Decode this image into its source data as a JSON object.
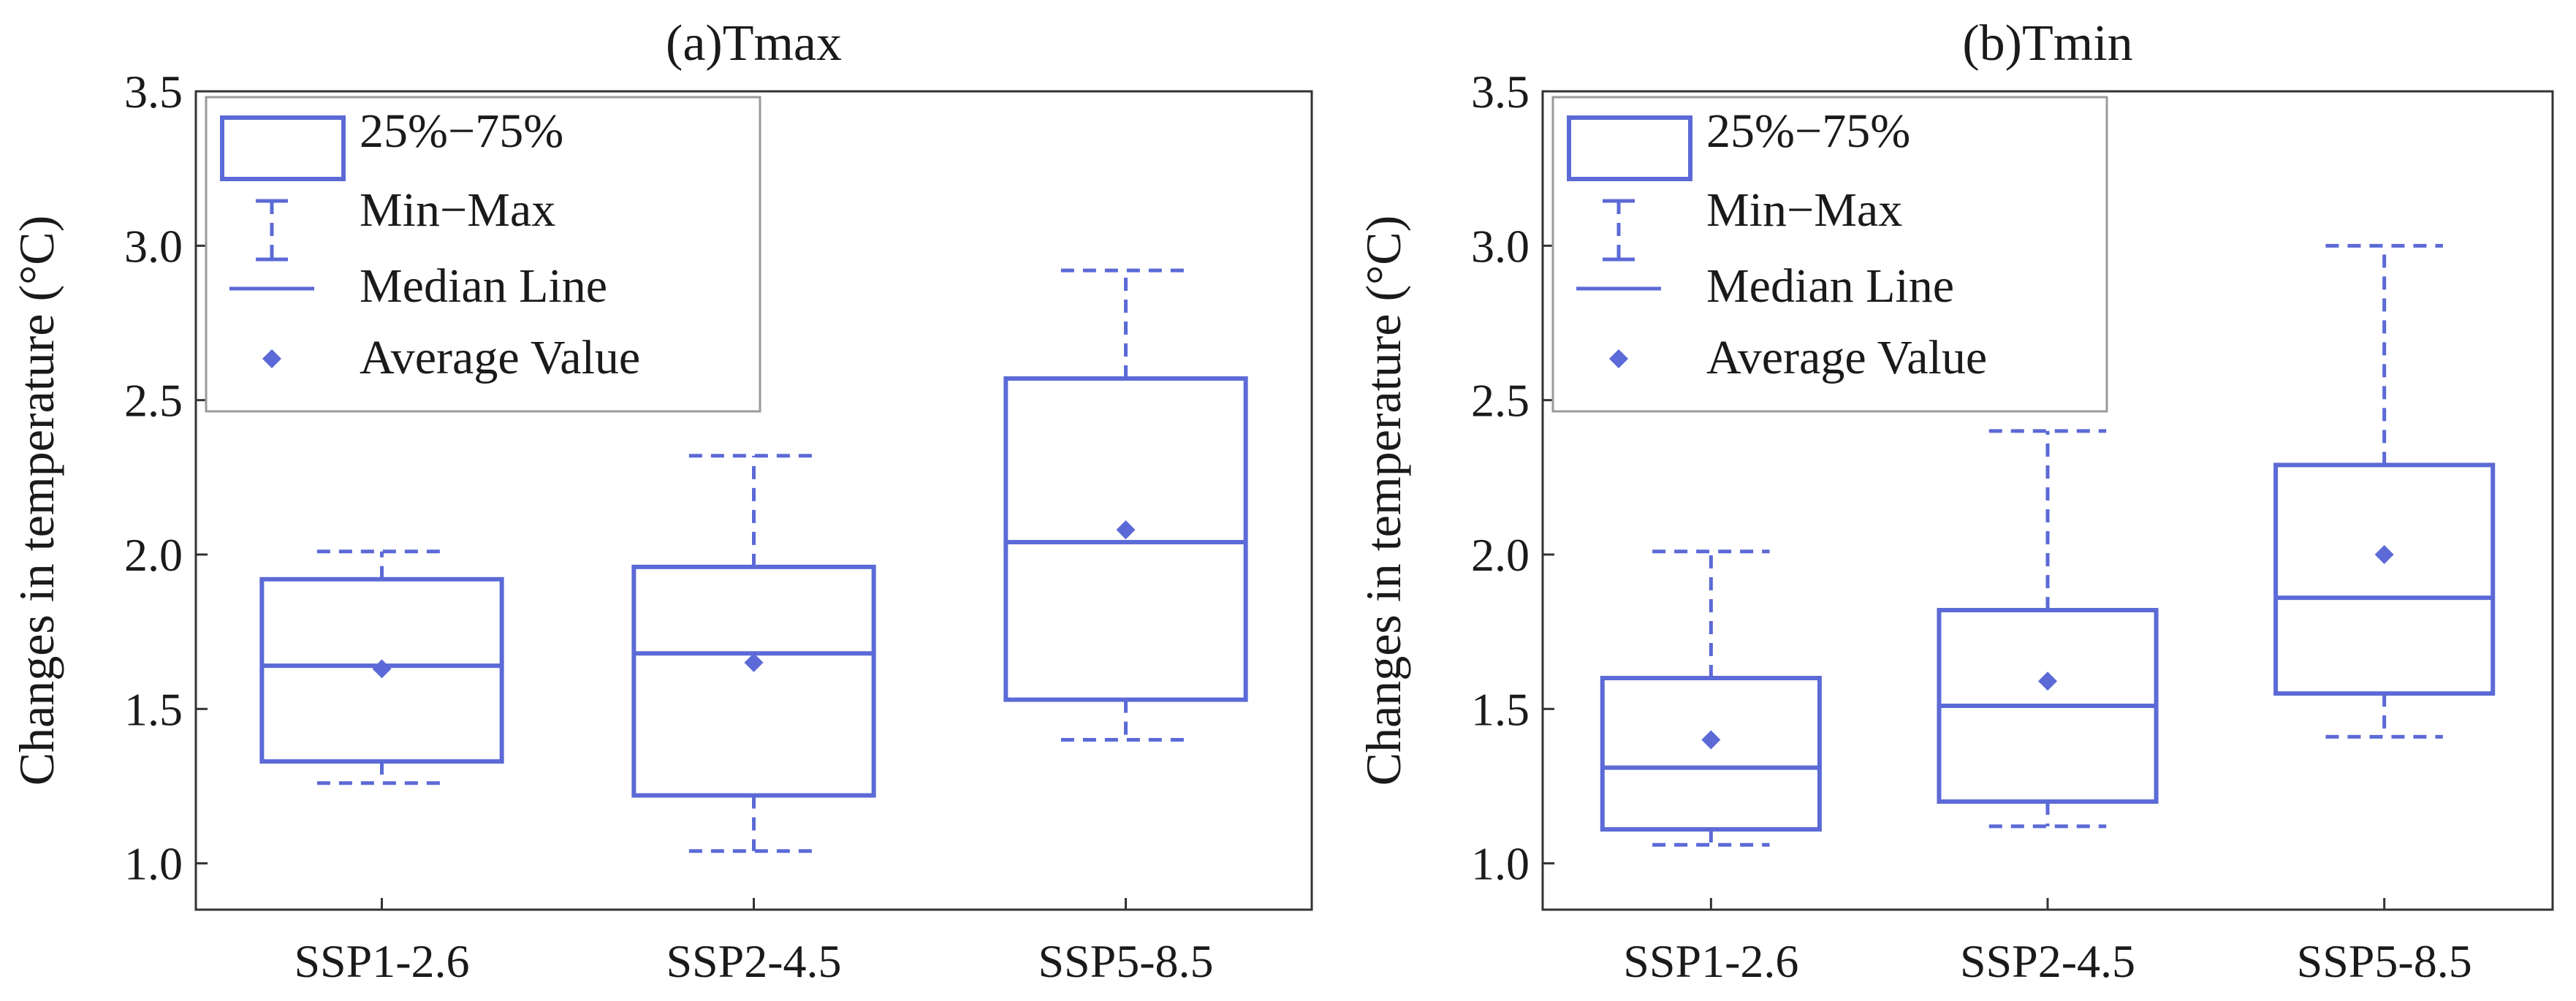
{
  "colors": {
    "box": "#5b6ad6",
    "axis": "#333333",
    "text": "#1a1a1a"
  },
  "legend": {
    "items": [
      {
        "label": "25%−75%",
        "icon": "box-swatch-icon"
      },
      {
        "label": "Min−Max",
        "icon": "whisker-swatch-icon"
      },
      {
        "label": "Median Line",
        "icon": "line-swatch-icon"
      },
      {
        "label": "Average Value",
        "icon": "diamond-marker-icon"
      }
    ]
  },
  "chart_data": [
    {
      "type": "box",
      "title": "(a)Tmax",
      "ylabel": "Changes in temperature (°C)",
      "xlabel": "",
      "ylim": [
        0.85,
        3.5
      ],
      "yticks": [
        "1.0",
        "1.5",
        "2.0",
        "2.5",
        "3.0",
        "3.5"
      ],
      "ytick_values": [
        1.0,
        1.5,
        2.0,
        2.5,
        3.0,
        3.5
      ],
      "categories": [
        "SSP1-2.6",
        "SSP2-4.5",
        "SSP5-8.5"
      ],
      "boxes": [
        {
          "min": 1.26,
          "q1": 1.33,
          "median": 1.64,
          "q3": 1.92,
          "max": 2.01,
          "mean": 1.63
        },
        {
          "min": 1.04,
          "q1": 1.22,
          "median": 1.68,
          "q3": 1.96,
          "max": 2.32,
          "mean": 1.65
        },
        {
          "min": 1.4,
          "q1": 1.53,
          "median": 2.04,
          "q3": 2.57,
          "max": 2.92,
          "mean": 2.08
        }
      ]
    },
    {
      "type": "box",
      "title": "(b)Tmin",
      "ylabel": "Changes in temperature (°C)",
      "xlabel": "",
      "ylim": [
        0.85,
        3.5
      ],
      "yticks": [
        "1.0",
        "1.5",
        "2.0",
        "2.5",
        "3.0",
        "3.5"
      ],
      "ytick_values": [
        1.0,
        1.5,
        2.0,
        2.5,
        3.0,
        3.5
      ],
      "categories": [
        "SSP1-2.6",
        "SSP2-4.5",
        "SSP5-8.5"
      ],
      "boxes": [
        {
          "min": 1.06,
          "q1": 1.11,
          "median": 1.31,
          "q3": 1.6,
          "max": 2.01,
          "mean": 1.4
        },
        {
          "min": 1.12,
          "q1": 1.2,
          "median": 1.51,
          "q3": 1.82,
          "max": 2.4,
          "mean": 1.59
        },
        {
          "min": 1.41,
          "q1": 1.55,
          "median": 1.86,
          "q3": 2.29,
          "max": 3.0,
          "mean": 2.0
        }
      ]
    }
  ]
}
